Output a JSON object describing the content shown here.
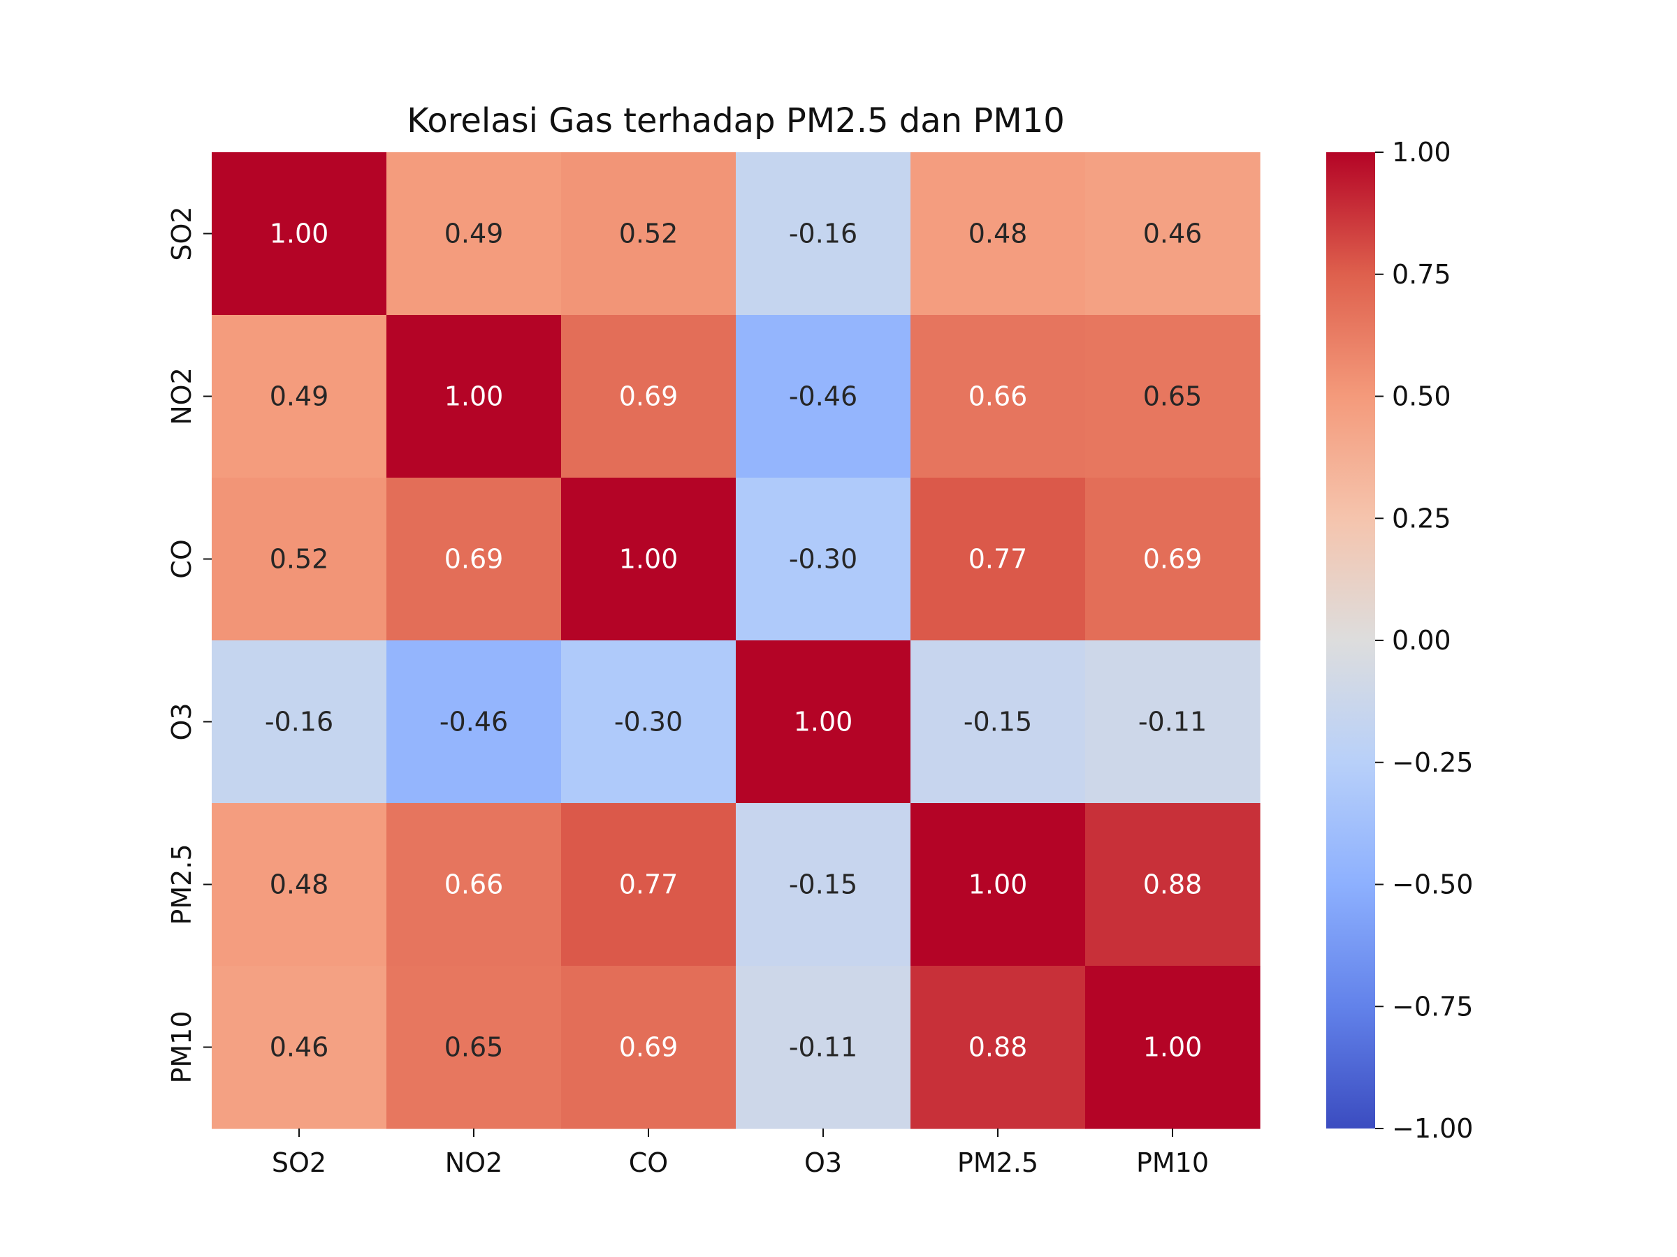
{
  "chart_data": {
    "type": "heatmap",
    "title": "Korelasi Gas terhadap PM2.5 dan PM10",
    "x_categories": [
      "SO2",
      "NO2",
      "CO",
      "O3",
      "PM2.5",
      "PM10"
    ],
    "y_categories": [
      "SO2",
      "NO2",
      "CO",
      "O3",
      "PM2.5",
      "PM10"
    ],
    "values": [
      [
        1.0,
        0.49,
        0.52,
        -0.16,
        0.48,
        0.46
      ],
      [
        0.49,
        1.0,
        0.69,
        -0.46,
        0.66,
        0.65
      ],
      [
        0.52,
        0.69,
        1.0,
        -0.3,
        0.77,
        0.69
      ],
      [
        -0.16,
        -0.46,
        -0.3,
        1.0,
        -0.15,
        -0.11
      ],
      [
        0.48,
        0.66,
        0.77,
        -0.15,
        1.0,
        0.88
      ],
      [
        0.46,
        0.65,
        0.69,
        -0.11,
        0.88,
        1.0
      ]
    ],
    "value_range": [
      -1.0,
      1.0
    ],
    "colormap": "coolwarm",
    "colorbar": {
      "ticks": [
        1.0,
        0.75,
        0.5,
        0.25,
        0.0,
        -0.25,
        -0.5,
        -0.75,
        -1.0
      ],
      "tick_labels": [
        "1.00",
        "0.75",
        "0.50",
        "0.25",
        "0.00",
        "−0.25",
        "−0.50",
        "−0.75",
        "−1.00"
      ],
      "position": "right"
    },
    "annotation_format": "2 decimals",
    "grid": false,
    "colors": {
      "text_dark": "#262626",
      "text_light": "#ffffff",
      "axis": "#111111"
    }
  }
}
